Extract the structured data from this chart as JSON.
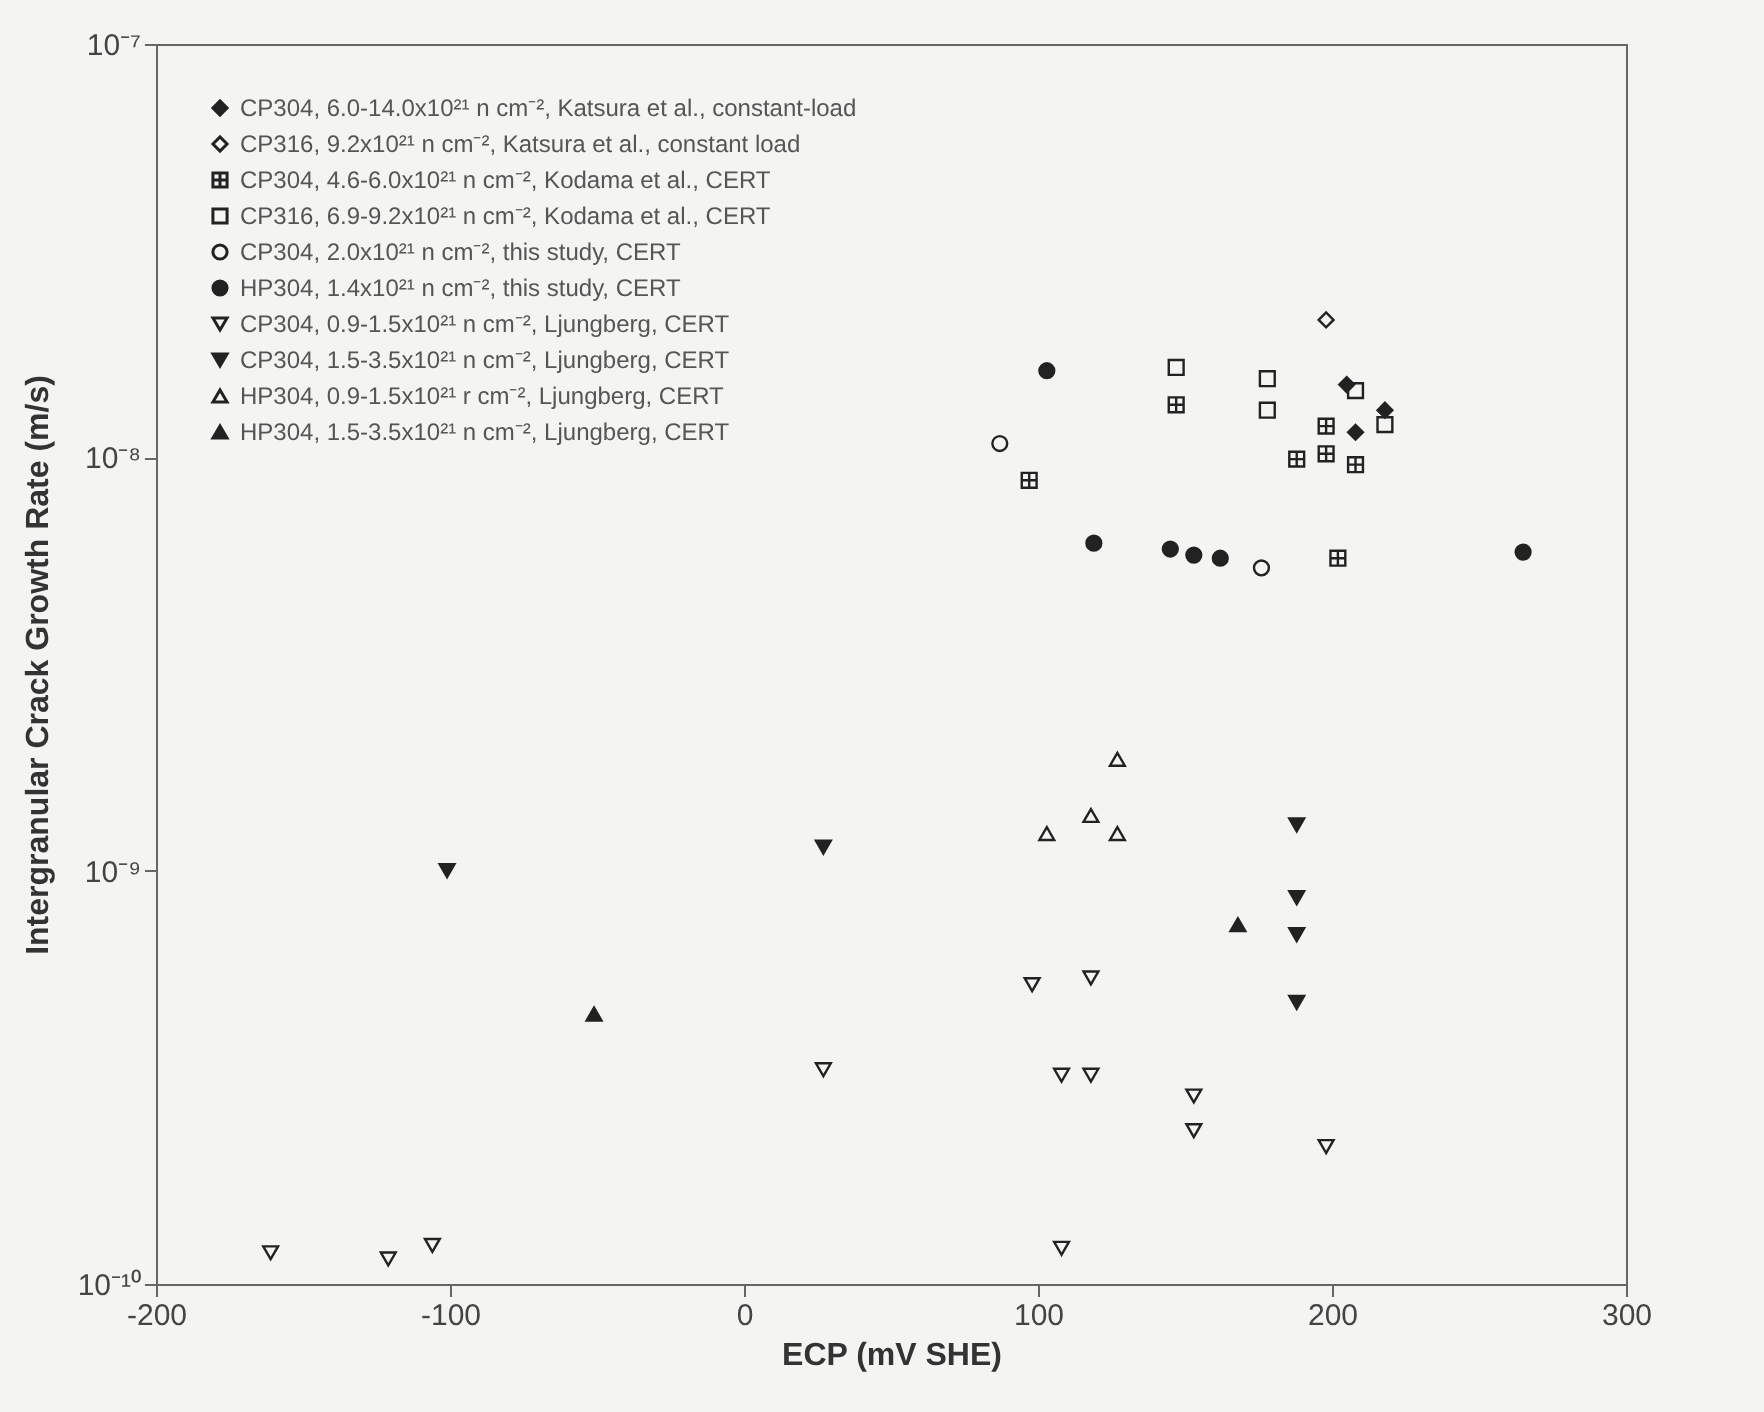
{
  "chart_data": {
    "type": "scatter",
    "xlabel": "ECP (mV SHE)",
    "ylabel": "Intergranular Crack Growth Rate (m/s)",
    "xlim": [
      -200,
      300
    ],
    "xticks": [
      -200,
      -100,
      0,
      100,
      200,
      300
    ],
    "ylim": [
      1e-10,
      1e-07
    ],
    "yticks": [
      {
        "value": 1e-10,
        "label": "10⁻¹⁰"
      },
      {
        "value": 1e-09,
        "label": "10⁻⁹"
      },
      {
        "value": 1e-08,
        "label": "10⁻⁸"
      },
      {
        "value": 1e-07,
        "label": "10⁻⁷"
      }
    ],
    "log": "y",
    "grid": false,
    "legend": "top left",
    "series": [
      {
        "name": "CP304, 6.0-14.0x10²¹ n cm⁻², Katsura et al., constant-load",
        "color": "#222222",
        "marker": "diamond",
        "x": [
          205,
          208,
          218
        ],
        "values": [
          1.5e-08,
          1.15e-08,
          1.3e-08
        ]
      },
      {
        "name": "CP316, 9.2x10²¹ n cm⁻², Katsura et al., constant load",
        "color": "#222222",
        "marker": "diamond-open",
        "x": [
          198
        ],
        "values": [
          2.15e-08
        ]
      },
      {
        "name": "CP304, 4.6-6.0x10²¹ n cm⁻², Kodama et al., CERT",
        "color": "#222222",
        "marker": "cross",
        "x": [
          147,
          97,
          198,
          188,
          198,
          208,
          202
        ],
        "values": [
          1.34e-08,
          8.8e-09,
          1.19e-08,
          9.9e-09,
          1.02e-08,
          9.6e-09,
          5.7e-09
        ]
      },
      {
        "name": "CP316, 6.9-9.2x10²¹ n cm⁻², Kodama et al., CERT",
        "color": "#222222",
        "marker": "square",
        "x": [
          147,
          178,
          178,
          218,
          208
        ],
        "values": [
          1.65e-08,
          1.55e-08,
          1.3e-08,
          1.2e-08,
          1.45e-08
        ]
      },
      {
        "name": "CP304, 2.0x10²¹ n cm⁻², this study, CERT",
        "color": "#222222",
        "marker": "circle-open",
        "x": [
          87,
          176
        ],
        "values": [
          1.08e-08,
          5.4e-09
        ]
      },
      {
        "name": "HP304, 1.4x10²¹ n cm⁻², this study, CERT",
        "color": "#222222",
        "marker": "circle",
        "x": [
          103,
          119,
          145,
          153,
          162,
          265
        ],
        "values": [
          1.62e-08,
          6.2e-09,
          6e-09,
          5.8e-09,
          5.7e-09,
          5.9e-09
        ]
      },
      {
        "name": "CP304, 0.9-1.5x10²¹ n cm⁻², Ljungberg, CERT",
        "color": "#222222",
        "marker": "triangle-down-open",
        "x": [
          -161,
          -121,
          -106,
          27,
          98,
          118,
          108,
          118,
          153,
          153,
          198,
          108
        ],
        "values": [
          1.19e-10,
          1.15e-10,
          1.24e-10,
          3.3e-10,
          5.3e-10,
          5.5e-10,
          3.2e-10,
          3.2e-10,
          2.85e-10,
          2.35e-10,
          2.15e-10,
          1.22e-10
        ]
      },
      {
        "name": "CP304, 1.5-3.5x10²¹ n cm⁻², Ljungberg, CERT",
        "color": "#222222",
        "marker": "triangle-down",
        "x": [
          -101,
          27,
          188,
          188,
          188,
          188
        ],
        "values": [
          1e-09,
          1.14e-09,
          1.29e-09,
          8.6e-10,
          7e-10,
          4.8e-10
        ]
      },
      {
        "name": "HP304, 0.9-1.5x10²¹ r cm⁻², Ljungberg, CERT",
        "color": "#222222",
        "marker": "triangle-open",
        "x": [
          127,
          103,
          118,
          127
        ],
        "values": [
          1.86e-09,
          1.23e-09,
          1.36e-09,
          1.23e-09
        ]
      },
      {
        "name": "HP304, 1.5-3.5x10²¹ n cm⁻², Ljungberg, CERT",
        "color": "#222222",
        "marker": "triangle",
        "x": [
          -51,
          168
        ],
        "values": [
          4.5e-10,
          7.4e-10
        ]
      }
    ]
  }
}
